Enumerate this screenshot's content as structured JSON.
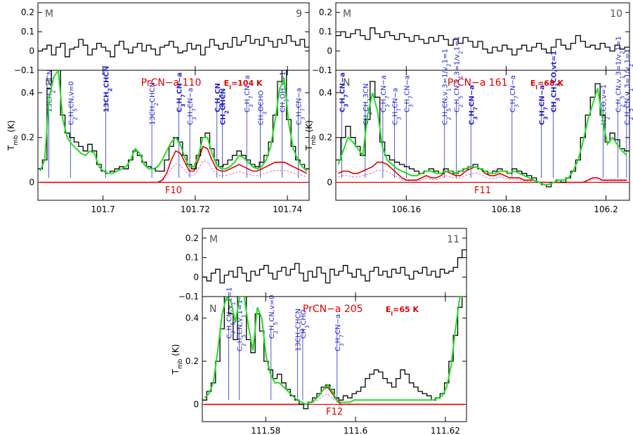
{
  "chart_data": [
    {
      "type": "line",
      "panel_number": "9",
      "x_ticks": [
        "101.7",
        "101.72",
        "101.74"
      ],
      "upper": {
        "label": "M",
        "yticks": [
          "0.2",
          "0.1",
          "0",
          "−0.1"
        ],
        "ylim": [
          -0.1,
          0.25
        ],
        "y": [
          0.0,
          0.01,
          0.03,
          -0.02,
          0.02,
          0.04,
          -0.03,
          0.01,
          0.02,
          0.06,
          0.03,
          -0.02,
          0.01,
          0.04,
          0.02,
          0.0,
          -0.03,
          0.03,
          0.05,
          0.01,
          -0.01,
          0.02,
          0.04,
          0.0,
          0.03,
          0.01,
          -0.02,
          0.02,
          0.03,
          0.05,
          0.02,
          -0.01,
          0.0,
          0.04,
          0.01,
          0.03,
          -0.02,
          0.02,
          0.06,
          0.03,
          0.01,
          0.04,
          0.02,
          0.07,
          0.03,
          0.05,
          0.08,
          0.04,
          0.06,
          0.03,
          0.07,
          0.05,
          0.02,
          0.06,
          0.04,
          0.08,
          0.05,
          0.03,
          0.06,
          0.02
        ]
      },
      "lower": {
        "label": "N",
        "yticks": [
          "0.4",
          "0.2",
          "0"
        ],
        "ylabel": "T_mb (K)",
        "ylim": [
          -0.08,
          0.5
        ],
        "observed": [
          0.06,
          0.1,
          0.42,
          0.5,
          0.5,
          0.3,
          0.22,
          0.2,
          0.18,
          0.16,
          0.14,
          0.17,
          0.14,
          0.08,
          0.05,
          0.04,
          0.05,
          0.06,
          0.07,
          0.06,
          0.1,
          0.14,
          0.12,
          0.09,
          0.07,
          0.06,
          0.05,
          0.05,
          0.1,
          0.16,
          0.2,
          0.18,
          0.12,
          0.08,
          0.06,
          0.12,
          0.2,
          0.22,
          0.15,
          0.1,
          0.07,
          0.08,
          0.1,
          0.12,
          0.14,
          0.12,
          0.1,
          0.08,
          0.07,
          0.09,
          0.12,
          0.18,
          0.3,
          0.45,
          0.5,
          0.28,
          0.16,
          0.1,
          0.08,
          0.06
        ],
        "model_total": [
          0.05,
          0.1,
          0.38,
          0.47,
          0.5,
          0.28,
          0.2,
          0.17,
          0.15,
          0.13,
          0.12,
          0.14,
          0.13,
          0.07,
          0.05,
          0.04,
          0.04,
          0.05,
          0.06,
          0.07,
          0.1,
          0.15,
          0.13,
          0.08,
          0.06,
          0.06,
          0.07,
          0.1,
          0.14,
          0.18,
          0.2,
          0.17,
          0.11,
          0.07,
          0.07,
          0.12,
          0.2,
          0.2,
          0.13,
          0.08,
          0.06,
          0.06,
          0.07,
          0.09,
          0.12,
          0.11,
          0.09,
          0.07,
          0.06,
          0.07,
          0.1,
          0.16,
          0.28,
          0.42,
          0.46,
          0.26,
          0.15,
          0.1,
          0.07,
          0.05
        ],
        "model_prcn": [
          0,
          0,
          0,
          0,
          0,
          0,
          0,
          0,
          0,
          0,
          0,
          0,
          0,
          0,
          0,
          0,
          0,
          0,
          0,
          0,
          0,
          0,
          0,
          0,
          0,
          0,
          0,
          0.01,
          0.04,
          0.1,
          0.14,
          0.13,
          0.09,
          0.05,
          0.05,
          0.1,
          0.16,
          0.15,
          0.1,
          0.06,
          0.05,
          0.05,
          0.06,
          0.07,
          0.08,
          0.07,
          0.06,
          0.05,
          0.05,
          0.06,
          0.07,
          0.08,
          0.09,
          0.09,
          0.09,
          0.08,
          0.07,
          0.06,
          0.05,
          0.04
        ],
        "title": "PrCN−a 110",
        "energy": "E",
        "energy_sub": "l",
        "energy_value": "=104 K",
        "feature": "F10",
        "lines": [
          {
            "text": "13CH2CHCN",
            "color": "blue",
            "x": 0.04
          },
          {
            "text": "C2H5CN,v=0",
            "color": "blue",
            "x": 0.12
          },
          {
            "text": "13CH2CHCN",
            "color": "bold-blue",
            "x": 0.25
          },
          {
            "text": "13CH2CHCN",
            "color": "blue",
            "x": 0.42
          },
          {
            "text": "C3H7CN−a",
            "color": "bold-blue",
            "x": 0.52
          },
          {
            "text": "C3H7CN−a",
            "color": "blue",
            "x": 0.56
          },
          {
            "text": "C2H5CN",
            "color": "bold-blue",
            "x": 0.66
          },
          {
            "text": "CH2CHCN",
            "color": "bold-blue",
            "x": 0.68
          },
          {
            "text": "C3H7CN−a",
            "color": "blue",
            "x": 0.77
          },
          {
            "text": "CH3OCHO",
            "color": "blue",
            "x": 0.82
          },
          {
            "text": "CH3OH,v=1",
            "color": "blue",
            "x": 0.9
          },
          {
            "text": "C3H7CN−a",
            "color": "blue",
            "x": 0.96
          }
        ]
      }
    },
    {
      "type": "line",
      "panel_number": "10",
      "x_ticks": [
        "106.16",
        "106.18",
        "106.2"
      ],
      "upper": {
        "label": "M",
        "yticks": [
          "0.2",
          "0.1",
          "0",
          "−0.1"
        ],
        "ylim": [
          -0.1,
          0.25
        ],
        "y": [
          0.08,
          0.1,
          0.07,
          0.09,
          0.11,
          0.08,
          0.06,
          0.12,
          0.09,
          0.07,
          0.1,
          0.08,
          0.06,
          0.09,
          0.07,
          0.05,
          0.08,
          0.06,
          0.04,
          0.07,
          0.05,
          0.08,
          0.06,
          0.03,
          0.06,
          0.04,
          0.07,
          0.05,
          0.02,
          0.05,
          0.01,
          -0.01,
          0.02,
          0.0,
          0.03,
          0.01,
          -0.02,
          0.01,
          0.03,
          0.0,
          0.02,
          0.04,
          0.01,
          -0.01,
          0.02,
          0.06,
          0.03,
          0.01,
          0.04,
          0.08,
          0.05,
          0.02,
          0.03,
          0.01,
          0.04,
          0.02,
          0.0,
          0.03,
          0.01,
          0.02
        ]
      },
      "lower": {
        "label": "N",
        "yticks": [
          "0.4",
          "0.2",
          "0"
        ],
        "ylabel": "T_mb (K)",
        "ylim": [
          -0.08,
          0.5
        ],
        "observed": [
          0.1,
          0.2,
          0.25,
          0.2,
          0.16,
          0.12,
          0.28,
          0.45,
          0.38,
          0.18,
          0.12,
          0.1,
          0.09,
          0.08,
          0.07,
          0.06,
          0.05,
          0.04,
          0.05,
          0.06,
          0.05,
          0.04,
          0.06,
          0.05,
          0.04,
          0.05,
          0.06,
          0.07,
          0.08,
          0.06,
          0.05,
          0.04,
          0.05,
          0.06,
          0.05,
          0.04,
          0.06,
          0.05,
          0.04,
          0.03,
          0.02,
          0.0,
          -0.01,
          -0.02,
          0.0,
          0.01,
          0.0,
          0.02,
          0.05,
          0.1,
          0.2,
          0.3,
          0.38,
          0.44,
          0.3,
          0.18,
          0.22,
          0.19,
          0.15,
          0.14
        ],
        "model_total": [
          0.08,
          0.14,
          0.2,
          0.18,
          0.15,
          0.12,
          0.3,
          0.4,
          0.32,
          0.16,
          0.1,
          0.08,
          0.06,
          0.05,
          0.04,
          0.03,
          0.03,
          0.04,
          0.05,
          0.05,
          0.04,
          0.04,
          0.05,
          0.05,
          0.04,
          0.05,
          0.06,
          0.07,
          0.07,
          0.06,
          0.05,
          0.04,
          0.04,
          0.05,
          0.05,
          0.04,
          0.05,
          0.04,
          0.03,
          0.02,
          0.01,
          0.0,
          -0.01,
          -0.01,
          0.0,
          0.01,
          0.01,
          0.02,
          0.05,
          0.1,
          0.18,
          0.28,
          0.35,
          0.42,
          0.28,
          0.17,
          0.2,
          0.17,
          0.14,
          0.12
        ],
        "model_prcn": [
          0.04,
          0.05,
          0.05,
          0.04,
          0.04,
          0.05,
          0.06,
          0.07,
          0.09,
          0.09,
          0.08,
          0.06,
          0.04,
          0.02,
          0.01,
          0.01,
          0.01,
          0.02,
          0.03,
          0.02,
          0.02,
          0.03,
          0.05,
          0.04,
          0.03,
          0.03,
          0.05,
          0.06,
          0.07,
          0.06,
          0.04,
          0.03,
          0.03,
          0.04,
          0.03,
          0.02,
          0.02,
          0.02,
          0.01,
          0.01,
          0.01,
          0.0,
          0.0,
          0.0,
          0.0,
          0.0,
          0.0,
          0.0,
          0.0,
          0.0,
          0.0,
          0.01,
          0.02,
          0.02,
          0.01,
          0.01,
          0.01,
          0.01,
          0.01,
          0.01
        ],
        "title": "PrCN−a 161",
        "energy": "E",
        "energy_sub": "l",
        "energy_value": "=68 K",
        "feature": "F11",
        "lines": [
          {
            "text": "C3H7CN−a",
            "color": "bold-blue",
            "x": 0.02
          },
          {
            "text": "CH2CH13CN",
            "color": "blue",
            "x": 0.1
          },
          {
            "text": "C3H7CN−a",
            "color": "blue",
            "x": 0.16
          },
          {
            "text": "C3H7CN−a",
            "color": "blue",
            "x": 0.2
          },
          {
            "text": "C3H7CN−a",
            "color": "blue",
            "x": 0.24
          },
          {
            "text": "C2H5CN,v13=1/v21=1",
            "color": "blue",
            "x": 0.37
          },
          {
            "text": "C2H5CN,v13=1/v21=1",
            "color": "blue",
            "x": 0.41
          },
          {
            "text": "C3H7CN−a",
            "color": "bold-blue",
            "x": 0.46
          },
          {
            "text": "C3H7CN−a",
            "color": "blue",
            "x": 0.6
          },
          {
            "text": "C3H7CN−a",
            "color": "bold-blue",
            "x": 0.7
          },
          {
            "text": "CH3CH3CO,vt=1",
            "color": "bold-blue",
            "x": 0.74
          },
          {
            "text": "H2CCO,v=1",
            "color": "blue",
            "x": 0.91
          },
          {
            "text": "C2H5CN,v13=1/v21=1",
            "color": "blue",
            "x": 0.96
          },
          {
            "text": "C2H5CN,v13=1/v21=1",
            "color": "blue",
            "x": 0.99
          }
        ]
      }
    },
    {
      "type": "line",
      "panel_number": "11",
      "x_ticks": [
        "111.58",
        "111.6",
        "111.62"
      ],
      "upper": {
        "label": "M",
        "yticks": [
          "0.2",
          "0.1",
          "0",
          "−0.1"
        ],
        "ylim": [
          -0.1,
          0.25
        ],
        "y": [
          0.0,
          -0.02,
          0.02,
          0.04,
          -0.03,
          0.01,
          0.03,
          0.0,
          0.05,
          0.02,
          -0.02,
          0.03,
          0.01,
          0.04,
          0.06,
          0.02,
          -0.01,
          0.03,
          0.05,
          0.01,
          0.04,
          0.07,
          0.02,
          -0.02,
          0.03,
          0.0,
          0.05,
          0.02,
          -0.03,
          0.04,
          0.01,
          0.03,
          0.06,
          0.02,
          0.0,
          0.04,
          0.01,
          -0.02,
          0.03,
          0.05,
          0.01,
          0.03,
          0.0,
          0.04,
          0.02,
          0.05,
          0.01,
          -0.01,
          0.03,
          0.02,
          0.05,
          0.01,
          0.03,
          0.0,
          0.04,
          0.02,
          0.03,
          0.05,
          0.1,
          0.14
        ]
      },
      "lower": {
        "label": "N",
        "yticks": [
          "0.4",
          "0.2",
          "0"
        ],
        "ylabel": "T_mb (K)",
        "ylim": [
          -0.08,
          0.5
        ],
        "observed": [
          0.02,
          0.06,
          0.1,
          0.2,
          0.35,
          0.5,
          0.42,
          0.3,
          0.5,
          0.5,
          0.3,
          0.24,
          0.42,
          0.34,
          0.2,
          0.16,
          0.12,
          0.14,
          0.1,
          0.07,
          0.04,
          0.02,
          0.0,
          -0.02,
          0.01,
          0.03,
          0.05,
          0.08,
          0.09,
          0.07,
          0.03,
          0.02,
          0.04,
          0.03,
          0.05,
          0.06,
          0.08,
          0.12,
          0.14,
          0.16,
          0.15,
          0.12,
          0.1,
          0.08,
          0.12,
          0.16,
          0.14,
          0.1,
          0.08,
          0.06,
          0.05,
          0.04,
          0.02,
          0.03,
          0.05,
          0.1,
          0.2,
          0.32,
          0.45,
          0.5
        ],
        "model_total": [
          0.03,
          0.05,
          0.1,
          0.25,
          0.42,
          0.5,
          0.48,
          0.38,
          0.5,
          0.5,
          0.36,
          0.25,
          0.45,
          0.4,
          0.22,
          0.14,
          0.1,
          0.1,
          0.08,
          0.06,
          0.04,
          0.02,
          0.01,
          0.0,
          0.01,
          0.02,
          0.04,
          0.07,
          0.09,
          0.06,
          0.02,
          0.01,
          0.01,
          0.01,
          0.02,
          0.02,
          0.02,
          0.02,
          0.02,
          0.02,
          0.02,
          0.02,
          0.02,
          0.02,
          0.02,
          0.02,
          0.02,
          0.02,
          0.02,
          0.02,
          0.02,
          0.02,
          0.02,
          0.03,
          0.04,
          0.08,
          0.18,
          0.35,
          0.5,
          0.5
        ],
        "model_prcn": [
          0,
          0,
          0,
          0,
          0,
          0,
          0,
          0,
          0,
          0,
          0,
          0,
          0,
          0,
          0,
          0,
          0,
          0,
          0,
          0,
          0,
          0,
          0,
          0,
          0.01,
          0.02,
          0.04,
          0.07,
          0.08,
          0.05,
          0.02,
          0.0,
          0,
          0,
          0,
          0,
          0,
          0,
          0,
          0,
          0,
          0,
          0,
          0,
          0,
          0,
          0,
          0,
          0,
          0,
          0,
          0,
          0,
          0,
          0,
          0,
          0,
          0,
          0,
          0
        ],
        "title": "PrCN−a 205",
        "energy": "E",
        "energy_sub": "l",
        "energy_value": "=65 K",
        "feature": "F12",
        "lines": [
          {
            "text": "C2H5CN,v11=1",
            "color": "blue",
            "x": 0.1
          },
          {
            "text": "C2H5CN,v11=1",
            "color": "blue",
            "x": 0.14
          },
          {
            "text": "C2H5CN,v=0",
            "color": "blue",
            "x": 0.26
          },
          {
            "text": "13CH2CHCN",
            "color": "blue",
            "x": 0.36
          },
          {
            "text": "CH3CHO",
            "color": "blue",
            "x": 0.38
          },
          {
            "text": "C3H7CN−a",
            "color": "blue",
            "x": 0.51
          }
        ]
      }
    }
  ]
}
